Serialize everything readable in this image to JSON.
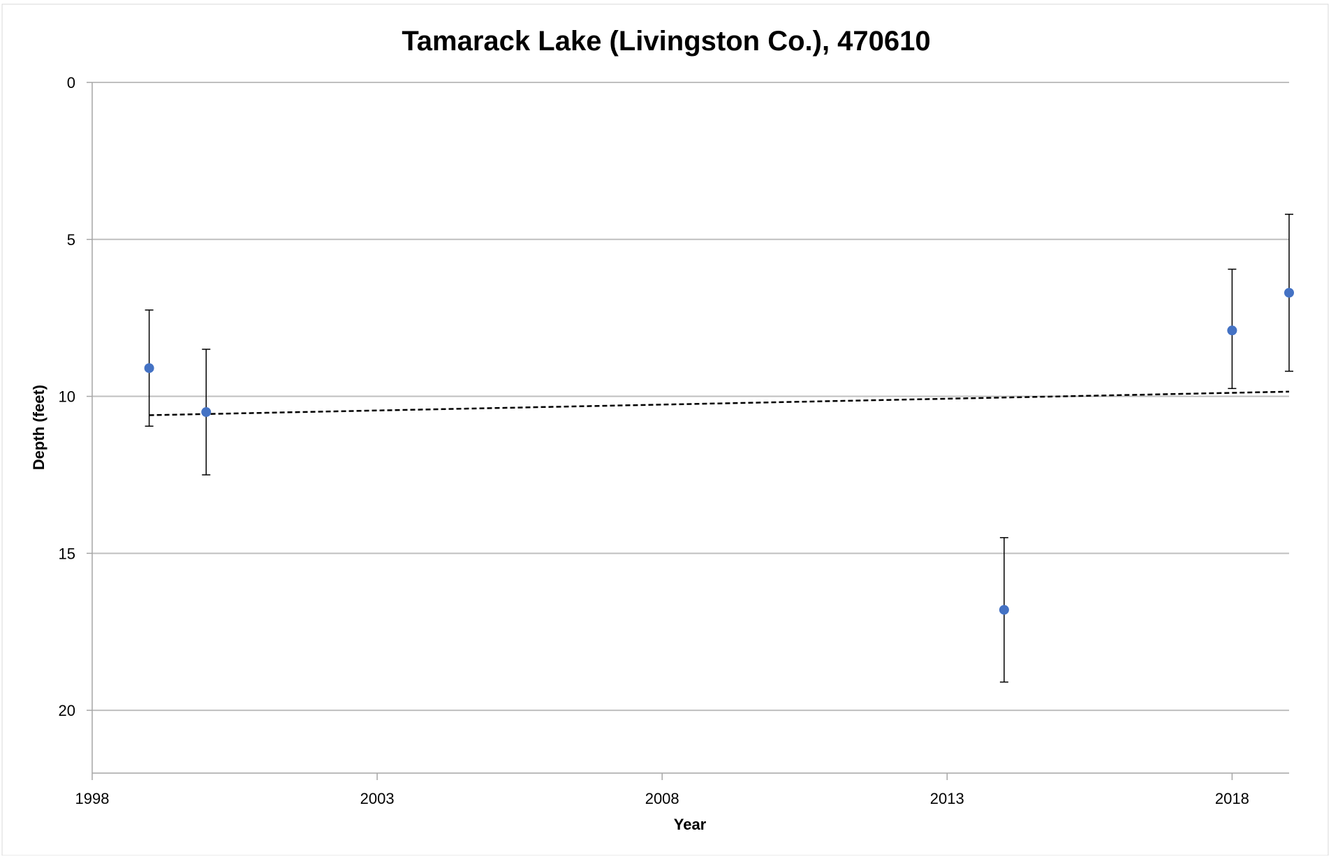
{
  "chart_data": {
    "type": "scatter",
    "title": "Tamarack Lake (Livingston Co.), 470610",
    "xlabel": "Year",
    "ylabel": "Depth (feet)",
    "xlim": [
      1998,
      2019
    ],
    "ylim": [
      0,
      22
    ],
    "y_inverted": true,
    "x_ticks": [
      1998,
      2003,
      2008,
      2013,
      2018
    ],
    "y_ticks": [
      0,
      5,
      10,
      15,
      20
    ],
    "grid": "horizontal",
    "legend": "none",
    "colors": {
      "points": "#4472c4",
      "error_bars": "#000000",
      "trendline": "#000000",
      "gridlines": "#bfbfbf",
      "axes": "#a6a6a6"
    },
    "points": [
      {
        "x": 1999,
        "y": 9.1,
        "y_low": 7.25,
        "y_high": 10.95
      },
      {
        "x": 2000,
        "y": 10.5,
        "y_low": 8.5,
        "y_high": 12.5
      },
      {
        "x": 2014,
        "y": 16.8,
        "y_low": 14.5,
        "y_high": 19.1
      },
      {
        "x": 2018,
        "y": 7.9,
        "y_low": 5.95,
        "y_high": 9.75
      },
      {
        "x": 2019,
        "y": 6.7,
        "y_low": 4.2,
        "y_high": 9.2
      }
    ],
    "trendline": {
      "style": "dashed",
      "from": {
        "x": 1999,
        "y": 10.6
      },
      "to": {
        "x": 2019,
        "y": 9.85
      }
    }
  }
}
